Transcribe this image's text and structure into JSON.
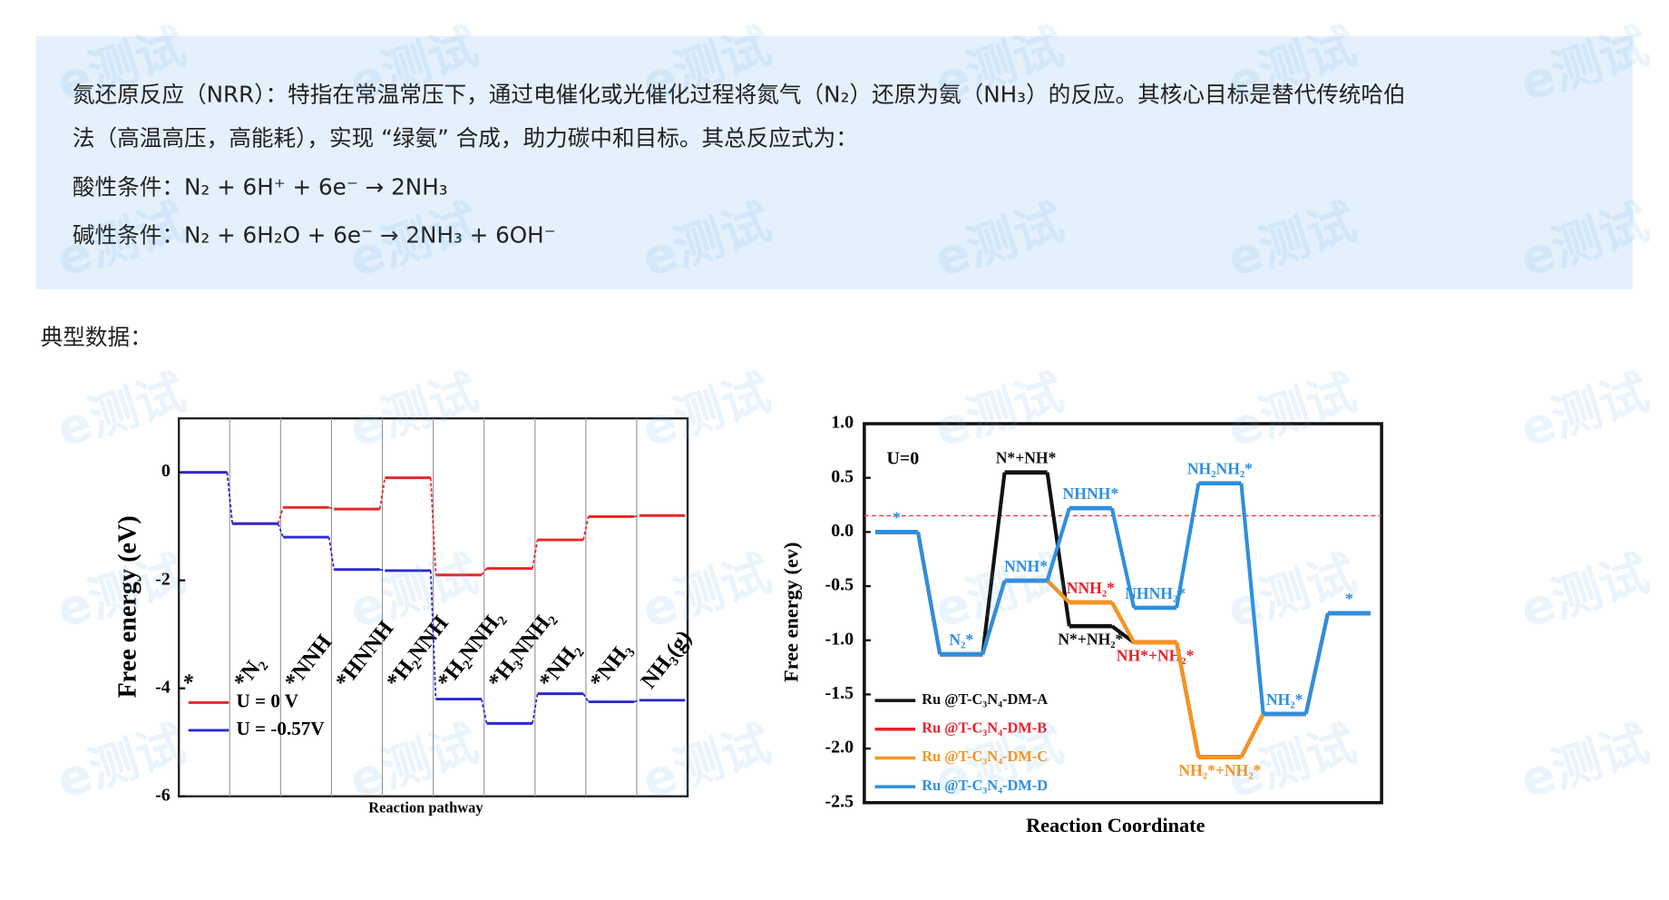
{
  "watermark": "e测试",
  "intro": {
    "paragraph_lines": [
      "氮还原反应（NRR）：特指在常温常压下，通过电催化或光催化过程将氮气（N₂）还原为氨（NH₃）的反应。其核心目标是替代传统哈伯",
      "法（高温高压，高能耗），实现 “绿氨” 合成，助力碳中和目标。其总反应式为："
    ],
    "acidic": "酸性条件：N₂ + 6H⁺ + 6e⁻ → 2NH₃",
    "alkaline": "碱性条件：N₂ + 6H₂O + 6e⁻ → 2NH₃ + 6OH⁻"
  },
  "section_label": "典型数据：",
  "chart_data": [
    {
      "type": "energy_profile",
      "y_label": "Free energy (eV)",
      "x_label": "Reaction pathway",
      "categories": [
        "*",
        "*N₂",
        "*NNH",
        "*HNNH",
        "*H₂NNH",
        "*H₂NNH₂",
        "*H₃NNH₂",
        "*NH₂",
        "*NH₃",
        "NH₃(g)"
      ],
      "series": [
        {
          "name": "U = 0 V",
          "color": "#e8262a",
          "values": [
            0,
            -0.95,
            -0.65,
            -0.68,
            -0.1,
            -1.9,
            -1.78,
            -1.25,
            -0.82,
            -0.8
          ]
        },
        {
          "name": "U = -0.57V",
          "color": "#2a2ad0",
          "values": [
            0,
            -0.95,
            -1.2,
            -1.8,
            -1.82,
            -4.2,
            -4.65,
            -4.1,
            -4.25,
            -4.22
          ]
        }
      ],
      "ylim": [
        -6,
        1
      ],
      "yticks": [
        0,
        -2,
        -4,
        -6
      ]
    },
    {
      "type": "energy_profile",
      "y_label": "Free energy (ev)",
      "x_label": "Reaction Coordinate",
      "annotation": "U=0",
      "categories": [
        null,
        null,
        null,
        null,
        null,
        null,
        null,
        null
      ],
      "reference_line": 0.15,
      "series": [
        {
          "name": "Ru @T-C₃N₄-DM-A",
          "color": "#111111",
          "values": [
            0,
            -1.13,
            0.55,
            -0.87,
            -1.02,
            -2.08,
            -1.68,
            -0.75
          ],
          "point_labels": [
            null,
            null,
            "N*+NH*",
            "N*+NH₂*",
            null,
            null,
            null,
            null
          ]
        },
        {
          "name": "Ru @T-C₃N₄-DM-B",
          "color": "#e8202a",
          "values": [
            0,
            -1.13,
            -0.45,
            -0.65,
            -1.02,
            -2.08,
            -1.68,
            -0.75
          ],
          "point_labels": [
            null,
            null,
            null,
            "NNH₂*",
            "NH*+NH₂*",
            null,
            null,
            null
          ]
        },
        {
          "name": "Ru @T-C₃N₄-DM-C",
          "color": "#f7941d",
          "values": [
            0,
            -1.13,
            -0.45,
            -0.65,
            -1.02,
            -2.08,
            -1.68,
            -0.75
          ],
          "point_labels": [
            null,
            null,
            null,
            null,
            null,
            "NH₂*+NH₂*",
            null,
            null
          ]
        },
        {
          "name": "Ru @T-C₃N₄-DM-D",
          "color": "#2d8fe0",
          "values": [
            0,
            -1.13,
            -0.45,
            0.22,
            -0.7,
            0.45,
            -1.68,
            -0.75
          ],
          "point_labels": [
            "*",
            "N₂*",
            "NNH*",
            "NHNH*",
            "NHNH₂*",
            "NH₂NH₂*",
            "NH₂*",
            "*"
          ]
        }
      ],
      "ylim": [
        -2.5,
        1
      ],
      "yticks": [
        {
          "value": 1,
          "label": "1.0"
        },
        0.5,
        {
          "value": 0,
          "label": "0.0"
        },
        -0.5,
        {
          "value": -1,
          "label": "-1.0"
        },
        -1.5,
        {
          "value": -2,
          "label": "-2.0"
        },
        -2.5
      ]
    }
  ]
}
